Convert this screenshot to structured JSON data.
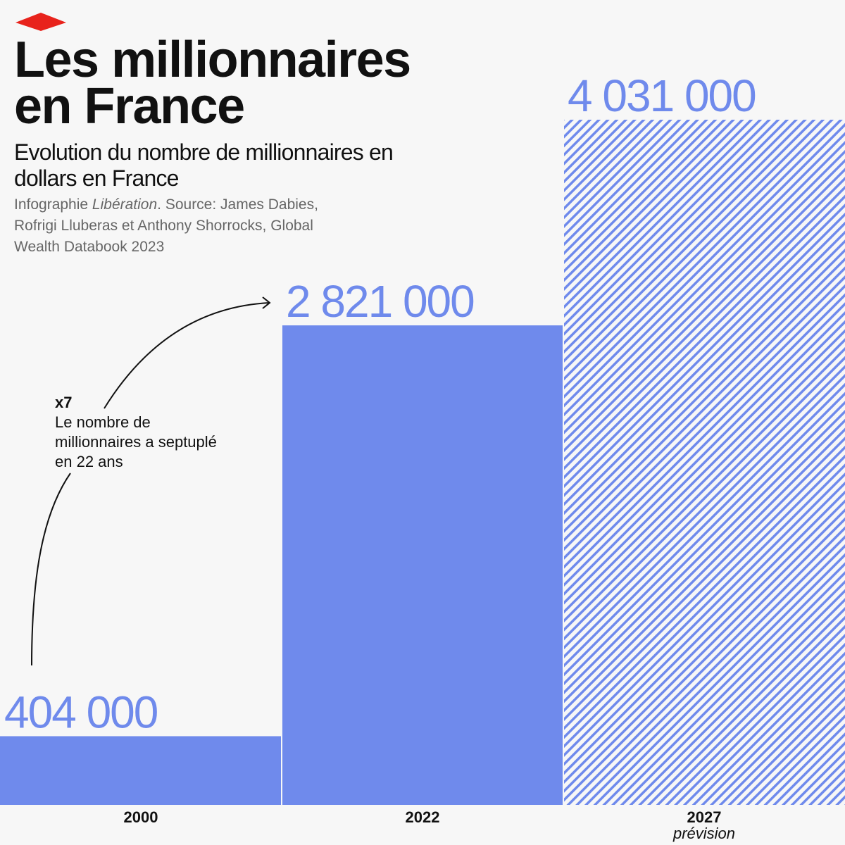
{
  "chart_data": {
    "type": "bar",
    "title": "Les millionnaires en France",
    "subtitle": "Evolution du nombre de millionnaires en dollars en France",
    "source": {
      "lead": "Infographie ",
      "outlet": "Libération",
      "rest": ". Source: James Dabies, Rofrigi Lluberas et Anthony Shorrocks, Global Wealth Databook 2023"
    },
    "annotation": {
      "head": "x7",
      "text": "Le nombre de millionnaires a septuplé en 22 ans"
    },
    "categories": [
      "2000",
      "2022",
      "2027"
    ],
    "notes": [
      null,
      null,
      "prévision"
    ],
    "values": [
      404000,
      2821000,
      4031000
    ],
    "value_labels": [
      "404 000",
      "2 821 000",
      "4 031 000"
    ],
    "patterns": [
      "solid",
      "solid",
      "hatched"
    ],
    "color": "#6f8aec"
  }
}
